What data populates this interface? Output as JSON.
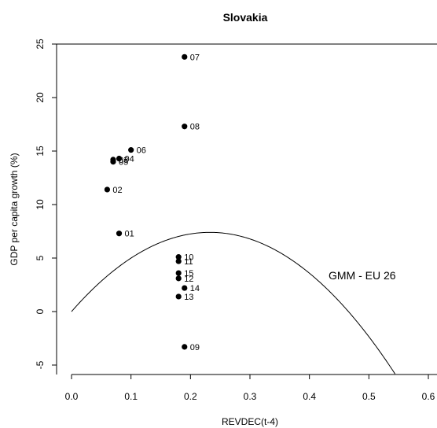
{
  "chart_data": {
    "type": "scatter",
    "title": "Slovakia",
    "xlabel": "REVDEC(t-4)",
    "ylabel": "GDP per capita growth (%)",
    "xlim": [
      0.0,
      0.6
    ],
    "ylim": [
      -5,
      25
    ],
    "x_ticks": [
      "0.0",
      "0.1",
      "0.2",
      "0.3",
      "0.4",
      "0.5",
      "0.6"
    ],
    "y_ticks": [
      "-5",
      "0",
      "5",
      "10",
      "15",
      "20",
      "25"
    ],
    "grid": false,
    "points": [
      {
        "label": "01",
        "x": 0.08,
        "y": 7.3
      },
      {
        "label": "02",
        "x": 0.06,
        "y": 11.4
      },
      {
        "label": "03",
        "x": 0.07,
        "y": 14.2
      },
      {
        "label": "04",
        "x": 0.08,
        "y": 14.3
      },
      {
        "label": "05",
        "x": 0.07,
        "y": 14.0
      },
      {
        "label": "06",
        "x": 0.1,
        "y": 15.1
      },
      {
        "label": "07",
        "x": 0.19,
        "y": 23.8
      },
      {
        "label": "08",
        "x": 0.19,
        "y": 17.3
      },
      {
        "label": "09",
        "x": 0.19,
        "y": -3.3
      },
      {
        "label": "10",
        "x": 0.18,
        "y": 5.1
      },
      {
        "label": "11",
        "x": 0.18,
        "y": 4.7
      },
      {
        "label": "12",
        "x": 0.18,
        "y": 3.1
      },
      {
        "label": "13",
        "x": 0.18,
        "y": 1.4
      },
      {
        "label": "14",
        "x": 0.19,
        "y": 2.2
      },
      {
        "label": "15",
        "x": 0.18,
        "y": 3.6
      }
    ],
    "curve": {
      "name": "GMM - EU 26",
      "type": "quadratic",
      "a": 63.6,
      "b": -136.6
    }
  }
}
